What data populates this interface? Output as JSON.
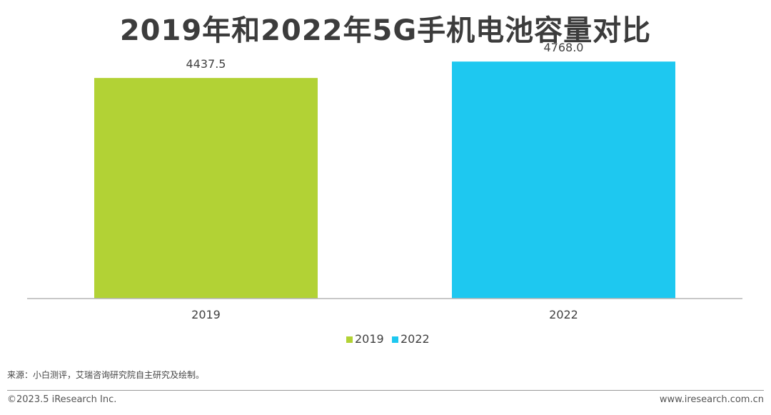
{
  "title": "2019年和2022年5G手机电池容量对比",
  "chart_data": {
    "type": "bar",
    "title": "2019年和2022年5G手机电池容量对比",
    "categories": [
      "2019",
      "2022"
    ],
    "series": [
      {
        "name": "2019",
        "values": [
          4437.5,
          null
        ],
        "color": "#b2d235"
      },
      {
        "name": "2022",
        "values": [
          null,
          4768.0
        ],
        "color": "#1ec8f0"
      }
    ],
    "labels": [
      "4437.5",
      "4768.0"
    ],
    "xlabel": "",
    "ylabel": "",
    "ylim": [
      0,
      5350
    ],
    "grid": false,
    "legend": [
      "2019",
      "2022"
    ],
    "legend_position": "bottom"
  },
  "source": "来源：小白测评，艾瑞咨询研究院自主研究及绘制。",
  "footer": {
    "copyright": "©2023.5 iResearch Inc.",
    "website": "www.iresearch.com.cn"
  }
}
